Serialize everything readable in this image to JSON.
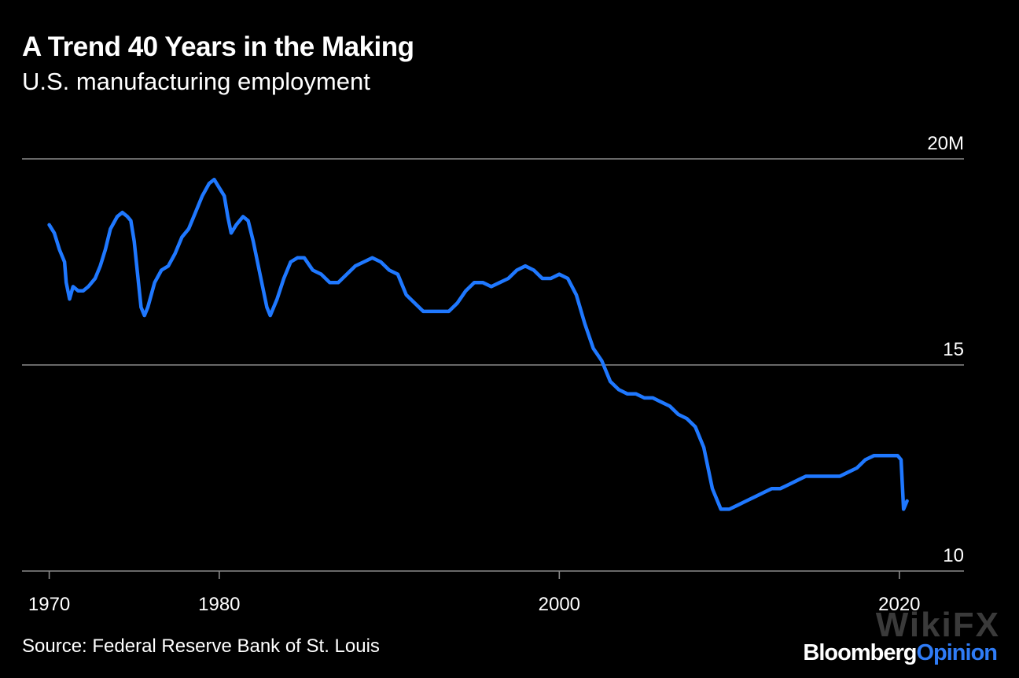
{
  "header": {
    "title": "A Trend 40 Years in the Making",
    "subtitle": "U.S. manufacturing employment"
  },
  "footer": {
    "source": "Source: Federal Reserve Bank of St. Louis",
    "brand_part1": "Bloomberg",
    "brand_part2": "Opinion",
    "watermark": "WikiFX"
  },
  "colors": {
    "line": "#1f78ff",
    "gridline": "#8a8a8a",
    "background": "#000000",
    "text": "#ffffff",
    "brand_accent": "#2f7cf6"
  },
  "chart_data": {
    "type": "line",
    "title": "A Trend 40 Years in the Making",
    "subtitle": "U.S. manufacturing employment",
    "xlabel": "",
    "ylabel": "",
    "xlim": [
      1968.4,
      2023.8
    ],
    "ylim": [
      10,
      20
    ],
    "y_ticks": [
      {
        "value": 20,
        "label": "20M"
      },
      {
        "value": 15,
        "label": "15"
      },
      {
        "value": 10,
        "label": "10"
      }
    ],
    "x_ticks": [
      {
        "value": 1970,
        "label": "1970"
      },
      {
        "value": 1980,
        "label": "1980"
      },
      {
        "value": 2000,
        "label": "2000"
      },
      {
        "value": 2020,
        "label": "2020"
      }
    ],
    "grid": true,
    "legend": "none",
    "series": [
      {
        "values": [
          [
            1970.0,
            18.4
          ],
          [
            1970.3,
            18.2
          ],
          [
            1970.6,
            17.8
          ],
          [
            1970.9,
            17.5
          ],
          [
            1971.0,
            17.0
          ],
          [
            1971.2,
            16.6
          ],
          [
            1971.4,
            16.9
          ],
          [
            1971.7,
            16.8
          ],
          [
            1972.0,
            16.8
          ],
          [
            1972.3,
            16.9
          ],
          [
            1972.7,
            17.1
          ],
          [
            1973.0,
            17.4
          ],
          [
            1973.3,
            17.8
          ],
          [
            1973.6,
            18.3
          ],
          [
            1974.0,
            18.6
          ],
          [
            1974.3,
            18.7
          ],
          [
            1974.6,
            18.6
          ],
          [
            1974.8,
            18.5
          ],
          [
            1975.0,
            18.0
          ],
          [
            1975.2,
            17.2
          ],
          [
            1975.4,
            16.4
          ],
          [
            1975.6,
            16.2
          ],
          [
            1975.8,
            16.4
          ],
          [
            1976.2,
            17.0
          ],
          [
            1976.6,
            17.3
          ],
          [
            1977.0,
            17.4
          ],
          [
            1977.4,
            17.7
          ],
          [
            1977.8,
            18.1
          ],
          [
            1978.2,
            18.3
          ],
          [
            1978.6,
            18.7
          ],
          [
            1979.0,
            19.1
          ],
          [
            1979.4,
            19.4
          ],
          [
            1979.7,
            19.5
          ],
          [
            1980.0,
            19.3
          ],
          [
            1980.3,
            19.1
          ],
          [
            1980.5,
            18.6
          ],
          [
            1980.7,
            18.2
          ],
          [
            1981.0,
            18.4
          ],
          [
            1981.4,
            18.6
          ],
          [
            1981.7,
            18.5
          ],
          [
            1982.0,
            18.0
          ],
          [
            1982.4,
            17.2
          ],
          [
            1982.8,
            16.4
          ],
          [
            1983.0,
            16.2
          ],
          [
            1983.4,
            16.6
          ],
          [
            1983.8,
            17.1
          ],
          [
            1984.2,
            17.5
          ],
          [
            1984.6,
            17.6
          ],
          [
            1985.0,
            17.6
          ],
          [
            1985.5,
            17.3
          ],
          [
            1986.0,
            17.2
          ],
          [
            1986.5,
            17.0
          ],
          [
            1987.0,
            17.0
          ],
          [
            1987.5,
            17.2
          ],
          [
            1988.0,
            17.4
          ],
          [
            1988.5,
            17.5
          ],
          [
            1989.0,
            17.6
          ],
          [
            1989.5,
            17.5
          ],
          [
            1990.0,
            17.3
          ],
          [
            1990.5,
            17.2
          ],
          [
            1991.0,
            16.7
          ],
          [
            1991.5,
            16.5
          ],
          [
            1992.0,
            16.3
          ],
          [
            1992.5,
            16.3
          ],
          [
            1993.0,
            16.3
          ],
          [
            1993.5,
            16.3
          ],
          [
            1994.0,
            16.5
          ],
          [
            1994.5,
            16.8
          ],
          [
            1995.0,
            17.0
          ],
          [
            1995.5,
            17.0
          ],
          [
            1996.0,
            16.9
          ],
          [
            1996.5,
            17.0
          ],
          [
            1997.0,
            17.1
          ],
          [
            1997.5,
            17.3
          ],
          [
            1998.0,
            17.4
          ],
          [
            1998.5,
            17.3
          ],
          [
            1999.0,
            17.1
          ],
          [
            1999.5,
            17.1
          ],
          [
            2000.0,
            17.2
          ],
          [
            2000.5,
            17.1
          ],
          [
            2001.0,
            16.7
          ],
          [
            2001.5,
            16.0
          ],
          [
            2002.0,
            15.4
          ],
          [
            2002.5,
            15.1
          ],
          [
            2003.0,
            14.6
          ],
          [
            2003.5,
            14.4
          ],
          [
            2004.0,
            14.3
          ],
          [
            2004.5,
            14.3
          ],
          [
            2005.0,
            14.2
          ],
          [
            2005.5,
            14.2
          ],
          [
            2006.0,
            14.1
          ],
          [
            2006.5,
            14.0
          ],
          [
            2007.0,
            13.8
          ],
          [
            2007.5,
            13.7
          ],
          [
            2008.0,
            13.5
          ],
          [
            2008.5,
            13.0
          ],
          [
            2009.0,
            12.0
          ],
          [
            2009.5,
            11.5
          ],
          [
            2010.0,
            11.5
          ],
          [
            2010.5,
            11.6
          ],
          [
            2011.0,
            11.7
          ],
          [
            2011.5,
            11.8
          ],
          [
            2012.0,
            11.9
          ],
          [
            2012.5,
            12.0
          ],
          [
            2013.0,
            12.0
          ],
          [
            2013.5,
            12.1
          ],
          [
            2014.0,
            12.2
          ],
          [
            2014.5,
            12.3
          ],
          [
            2015.0,
            12.3
          ],
          [
            2015.5,
            12.3
          ],
          [
            2016.0,
            12.3
          ],
          [
            2016.5,
            12.3
          ],
          [
            2017.0,
            12.4
          ],
          [
            2017.5,
            12.5
          ],
          [
            2018.0,
            12.7
          ],
          [
            2018.5,
            12.8
          ],
          [
            2019.0,
            12.8
          ],
          [
            2019.5,
            12.8
          ],
          [
            2019.9,
            12.8
          ],
          [
            2020.1,
            12.7
          ],
          [
            2020.25,
            11.5
          ],
          [
            2020.35,
            11.6
          ],
          [
            2020.45,
            11.7
          ]
        ]
      }
    ]
  }
}
